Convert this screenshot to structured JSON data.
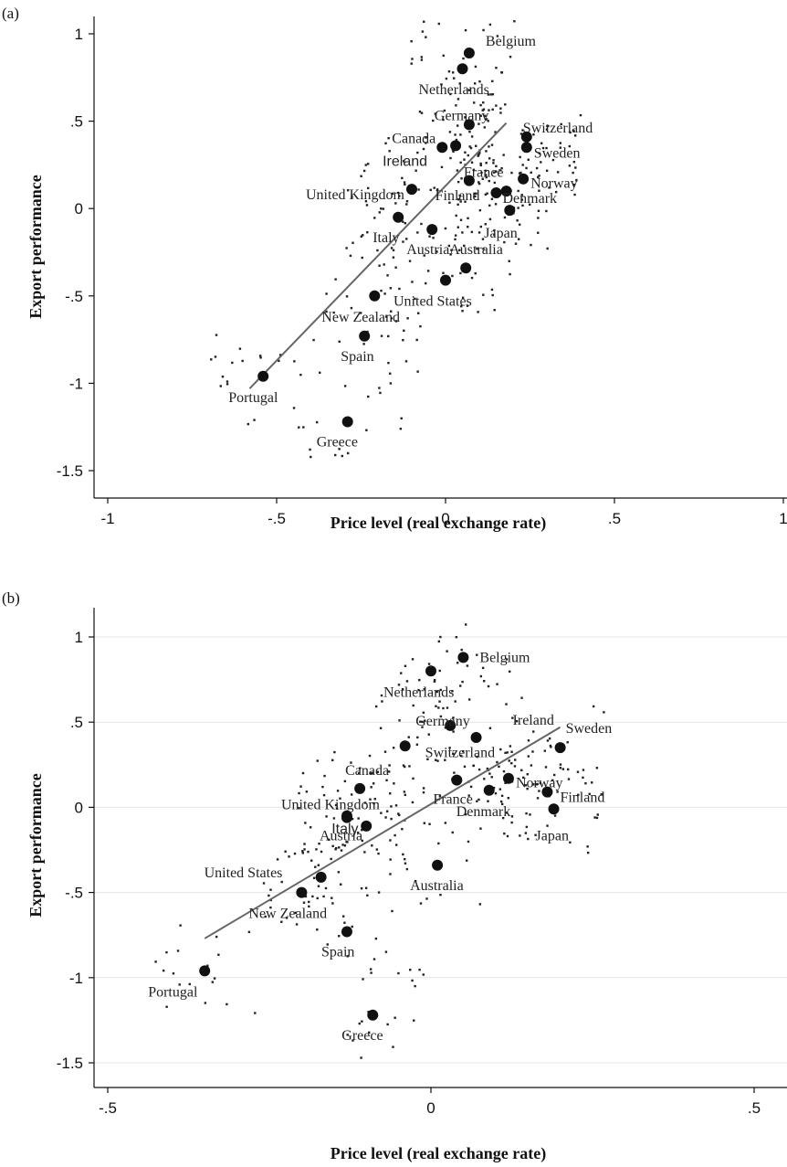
{
  "chart_data": [
    {
      "type": "scatter",
      "panel_label": "(a)",
      "xlabel": "Price level (real exchange rate)",
      "ylabel": "Export performance",
      "xlim": [
        -1,
        1
      ],
      "ylim": [
        -1.5,
        1
      ],
      "xticks": [
        "-1",
        "-.5",
        "0",
        ".5",
        "1"
      ],
      "yticks": [
        "1",
        ".5",
        "0",
        "-.5",
        "-1",
        "-1.5"
      ],
      "grid": false,
      "countries": [
        {
          "name": "Belgium",
          "x": 0.07,
          "y": 0.89
        },
        {
          "name": "Netherlands",
          "x": 0.05,
          "y": 0.8
        },
        {
          "name": "Germany",
          "x": 0.07,
          "y": 0.48
        },
        {
          "name": "Switzerland",
          "x": 0.24,
          "y": 0.41
        },
        {
          "name": "Canada",
          "x": -0.01,
          "y": 0.35
        },
        {
          "name": "Ireland",
          "x": 0.03,
          "y": 0.36
        },
        {
          "name": "Sweden",
          "x": 0.24,
          "y": 0.35
        },
        {
          "name": "France",
          "x": 0.07,
          "y": 0.16
        },
        {
          "name": "Norway",
          "x": 0.23,
          "y": 0.17
        },
        {
          "name": "United Kingdom",
          "x": -0.1,
          "y": 0.11
        },
        {
          "name": "Denmark",
          "x": 0.15,
          "y": 0.09
        },
        {
          "name": "Finland",
          "x": 0.18,
          "y": 0.1
        },
        {
          "name": "Italy",
          "x": -0.14,
          "y": -0.05
        },
        {
          "name": "Japan",
          "x": 0.19,
          "y": -0.01
        },
        {
          "name": "Austria",
          "x": -0.04,
          "y": -0.12
        },
        {
          "name": "Australia",
          "x": 0.06,
          "y": -0.34
        },
        {
          "name": "United States",
          "x": 0.0,
          "y": -0.41
        },
        {
          "name": "New Zealand",
          "x": -0.21,
          "y": -0.5
        },
        {
          "name": "Spain",
          "x": -0.24,
          "y": -0.73
        },
        {
          "name": "Portugal",
          "x": -0.54,
          "y": -0.96
        },
        {
          "name": "Greece",
          "x": -0.29,
          "y": -1.22
        }
      ],
      "fit_line": {
        "x": [
          -0.58,
          0.18
        ],
        "y": [
          -1.03,
          0.49
        ]
      }
    },
    {
      "type": "scatter",
      "panel_label": "(b)",
      "xlabel": "Price level (real exchange rate)",
      "ylabel": "Export performance",
      "xlim": [
        -0.55,
        0.55
      ],
      "ylim": [
        -1.6,
        1.1
      ],
      "xticks": [
        "-.5",
        "0",
        ".5"
      ],
      "yticks": [
        "1",
        ".5",
        "0",
        "-.5",
        "-1",
        "-1.5"
      ],
      "grid": true,
      "countries": [
        {
          "name": "Belgium",
          "x": 0.05,
          "y": 0.88
        },
        {
          "name": "Netherlands",
          "x": 0.0,
          "y": 0.8
        },
        {
          "name": "Germany",
          "x": 0.03,
          "y": 0.48
        },
        {
          "name": "Ireland",
          "x": 0.07,
          "y": 0.41
        },
        {
          "name": "Switzerland",
          "x": -0.04,
          "y": 0.36
        },
        {
          "name": "Sweden",
          "x": 0.2,
          "y": 0.35
        },
        {
          "name": "Canada",
          "x": -0.11,
          "y": 0.11
        },
        {
          "name": "France",
          "x": 0.04,
          "y": 0.16
        },
        {
          "name": "Norway",
          "x": 0.12,
          "y": 0.17
        },
        {
          "name": "United Kingdom",
          "x": -0.13,
          "y": -0.05
        },
        {
          "name": "Denmark",
          "x": 0.09,
          "y": 0.1
        },
        {
          "name": "Finland",
          "x": 0.18,
          "y": 0.09
        },
        {
          "name": "Italy",
          "x": -0.1,
          "y": -0.11
        },
        {
          "name": "Japan",
          "x": 0.19,
          "y": -0.01
        },
        {
          "name": "Austria",
          "x": -0.13,
          "y": -0.06
        },
        {
          "name": "Australia",
          "x": 0.01,
          "y": -0.34
        },
        {
          "name": "United States",
          "x": -0.17,
          "y": -0.41
        },
        {
          "name": "New Zealand",
          "x": -0.2,
          "y": -0.5
        },
        {
          "name": "Spain",
          "x": -0.13,
          "y": -0.73
        },
        {
          "name": "Portugal",
          "x": -0.35,
          "y": -0.96
        },
        {
          "name": "Greece",
          "x": -0.09,
          "y": -1.22
        }
      ],
      "fit_line": {
        "x": [
          -0.35,
          0.2
        ],
        "y": [
          -0.77,
          0.47
        ]
      }
    }
  ]
}
